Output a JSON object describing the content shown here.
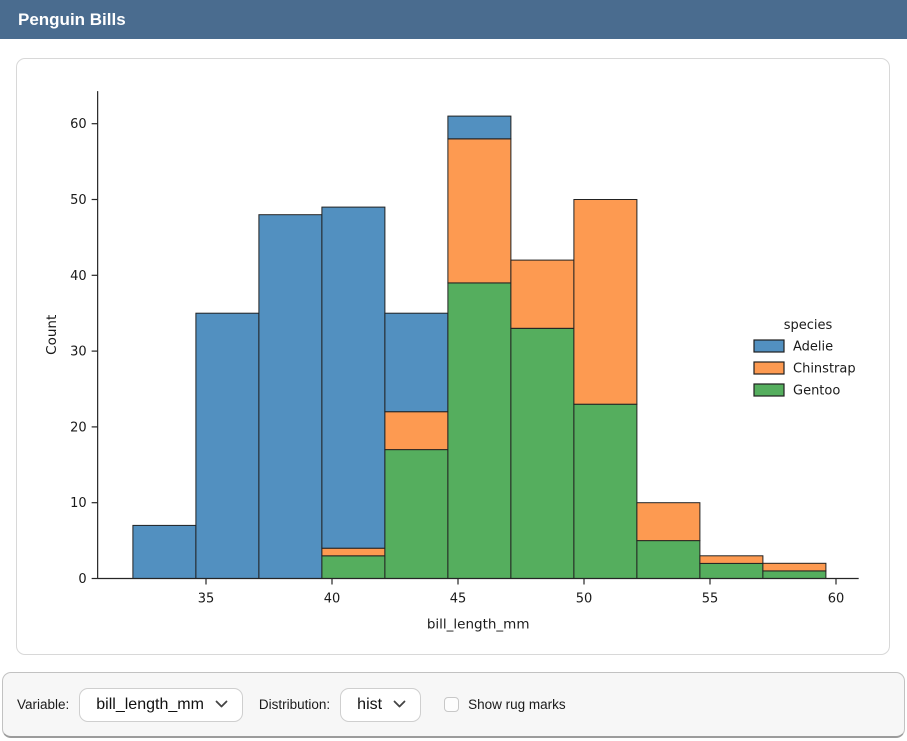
{
  "header": {
    "title": "Penguin Bills"
  },
  "theme": {
    "titlebar_bg": "#4a6c8f",
    "card_border": "#d8d8d8",
    "footer_bg": "#f7f7f7",
    "axis_color": "#262626",
    "text_color": "#1a1a1a",
    "bar_edge_color": "#222222"
  },
  "chart_data": {
    "type": "bar",
    "subtype": "stacked-histogram",
    "xlabel": "bill_length_mm",
    "ylabel": "Count",
    "legend_title": "species",
    "legend_position": "right",
    "grid": false,
    "bin_edges": [
      32.1,
      34.6,
      37.1,
      39.6,
      42.1,
      44.6,
      47.1,
      49.6,
      52.1,
      54.6,
      57.1,
      59.6
    ],
    "series": [
      {
        "name": "Adelie",
        "color": "#5290c0",
        "values": [
          7,
          35,
          48,
          45,
          13,
          3,
          0,
          0,
          0,
          0,
          0
        ]
      },
      {
        "name": "Chinstrap",
        "color": "#fd9a51",
        "values": [
          0,
          0,
          0,
          1,
          5,
          19,
          9,
          27,
          5,
          1,
          1
        ]
      },
      {
        "name": "Gentoo",
        "color": "#55ae5e",
        "values": [
          0,
          0,
          0,
          3,
          17,
          39,
          33,
          23,
          5,
          2,
          1
        ]
      }
    ],
    "stack_order_bottom_to_top": [
      "Gentoo",
      "Chinstrap",
      "Adelie"
    ],
    "bin_totals": [
      7,
      35,
      48,
      49,
      35,
      61,
      42,
      50,
      10,
      3,
      2
    ],
    "x_ticks": [
      35,
      40,
      45,
      50,
      55,
      60
    ],
    "y_ticks": [
      0,
      10,
      20,
      30,
      40,
      50,
      60
    ],
    "xlim": [
      30.7,
      60.9
    ],
    "ylim": [
      0,
      64.3
    ]
  },
  "footer": {
    "variable_label": "Variable:",
    "variable_value": "bill_length_mm",
    "distribution_label": "Distribution:",
    "distribution_value": "hist",
    "rug_label": "Show rug marks",
    "rug_checked": false
  }
}
